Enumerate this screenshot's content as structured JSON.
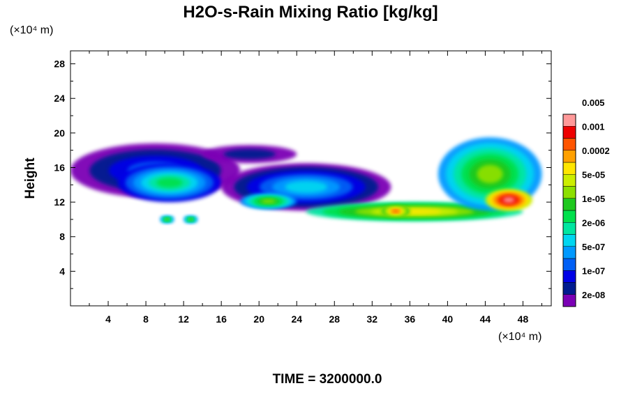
{
  "chart_data": {
    "type": "heatmap",
    "title": "H2O-s-Rain Mixing Ratio [kg/kg]",
    "ylabel": "Height",
    "x_unit": "(×10⁴ m)",
    "y_unit": "(×10⁴ m)",
    "footer": "TIME = 3200000.0",
    "xlim": [
      0,
      51
    ],
    "ylim": [
      0,
      29.5
    ],
    "x_ticks": [
      "4",
      "8",
      "12",
      "16",
      "20",
      "24",
      "28",
      "32",
      "36",
      "40",
      "44",
      "48"
    ],
    "y_ticks": [
      "4",
      "8",
      "12",
      "16",
      "20",
      "24",
      "28"
    ],
    "colorbar": {
      "labels": [
        "2e-08",
        "1e-07",
        "5e-07",
        "2e-06",
        "1e-05",
        "5e-05",
        "0.0002",
        "0.001",
        "0.005"
      ],
      "colors": [
        "#7b00b5",
        "#001b8f",
        "#0000e6",
        "#005ff5",
        "#0099ff",
        "#00d6f0",
        "#00e6a0",
        "#00e04c",
        "#1ec81e",
        "#8de000",
        "#ccee00",
        "#ffe600",
        "#ffa000",
        "#ff5500",
        "#ee0000",
        "#ff9999"
      ]
    },
    "fields": [
      {
        "name": "upper-anvil-west",
        "x": [
          0,
          18
        ],
        "y": [
          12.5,
          18.8
        ],
        "level": "1e-07"
      },
      {
        "name": "upper-anvil-purple",
        "x": [
          14,
          24
        ],
        "y": [
          16.5,
          18.6
        ],
        "level": "2e-08"
      },
      {
        "name": "cloud-west-core",
        "x": [
          5,
          16
        ],
        "y": [
          12.0,
          16.5
        ],
        "level": "2e-06"
      },
      {
        "name": "cloud-mid",
        "x": [
          16,
          34
        ],
        "y": [
          11.0,
          16.5
        ],
        "level": "5e-07"
      },
      {
        "name": "cloud-mid-core",
        "x": [
          18,
          24
        ],
        "y": [
          11.2,
          13.0
        ],
        "level": "1e-05"
      },
      {
        "name": "low-band",
        "x": [
          25,
          48
        ],
        "y": [
          9.8,
          12.0
        ],
        "level": "5e-05"
      },
      {
        "name": "low-band-core",
        "x": [
          33,
          36
        ],
        "y": [
          10.3,
          11.6
        ],
        "level": "0.0002"
      },
      {
        "name": "storm-east",
        "x": [
          39,
          50
        ],
        "y": [
          11.0,
          19.5
        ],
        "level": "1e-05"
      },
      {
        "name": "storm-east-core",
        "x": [
          44,
          49
        ],
        "y": [
          11.0,
          13.5
        ],
        "level": "0.001"
      },
      {
        "name": "small-cell-10",
        "x": [
          9.5,
          11
        ],
        "y": [
          9.6,
          10.4
        ],
        "level": "1e-05"
      },
      {
        "name": "small-cell-12.5",
        "x": [
          12,
          13.5
        ],
        "y": [
          9.6,
          10.4
        ],
        "level": "1e-05"
      }
    ]
  }
}
